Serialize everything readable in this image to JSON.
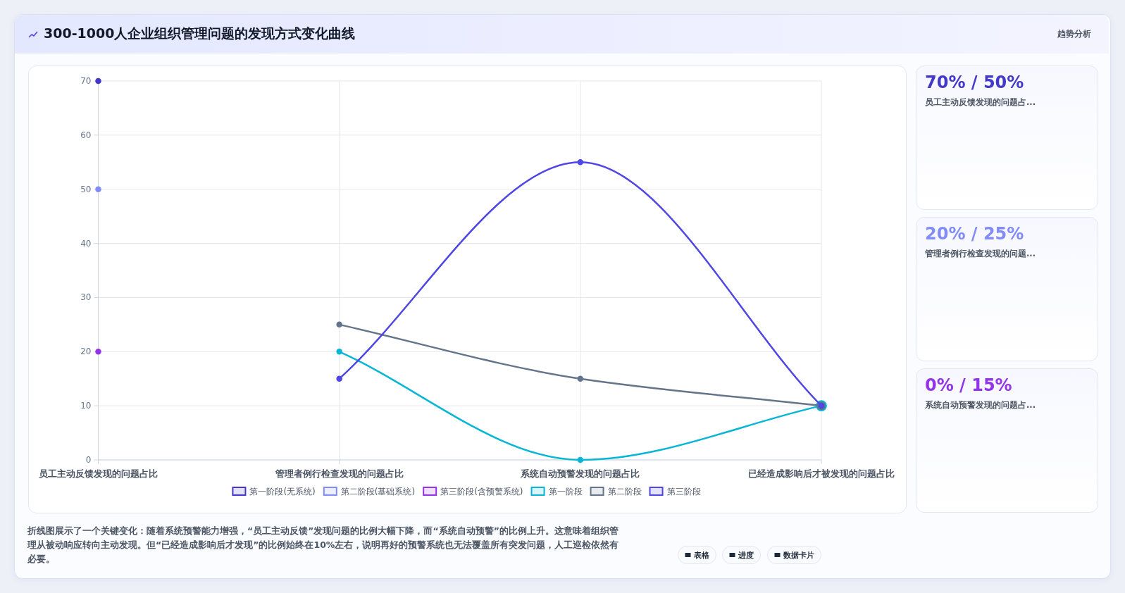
{
  "chart_data": {
    "type": "line",
    "title": "300-1000人企业组织管理问题的发现方式变化曲线",
    "categories": [
      "员工主动反馈发现的问题占比",
      "管理者例行检查发现的问题占比",
      "系统自动预警发现的问题占比",
      "已经造成影响后才被发现的问题占比"
    ],
    "series": [
      {
        "name": "第一阶段(无系统)",
        "color": "#4338ca",
        "values": [
          70,
          null,
          null,
          null
        ]
      },
      {
        "name": "第二阶段(基础系统)",
        "color": "#818cf8",
        "values": [
          50,
          null,
          null,
          null
        ]
      },
      {
        "name": "第三阶段(含预警系统)",
        "color": "#9333ea",
        "values": [
          20,
          null,
          null,
          null
        ]
      },
      {
        "name": "第一阶段",
        "color": "#06b6d4",
        "values": [
          null,
          20,
          0,
          10
        ]
      },
      {
        "name": "第二阶段",
        "color": "#64748b",
        "values": [
          null,
          25,
          15,
          10
        ]
      },
      {
        "name": "第三阶段",
        "color": "#4f46e5",
        "values": [
          null,
          15,
          55,
          10
        ]
      }
    ],
    "ylim": [
      0,
      70
    ],
    "yticks": [
      0,
      10,
      20,
      30,
      40,
      50,
      60,
      70
    ],
    "grid": true,
    "legend": "bottom",
    "marker": "circle",
    "annotations": [
      "趋势分析",
      "70% / 50%",
      "员工主动反馈发现的问题占...",
      "20% / 25%",
      "管理者例行检查发现的问题...",
      "0% / 15%",
      "系统自动预警发现的问题占...",
      "折线图展示了一个关键变化：随着系统预警能力增强，“员工主动反馈”发现问题的比例大幅下降，而“系统自动预警”的比例上升。这意味着组织管理从被动响应转向主动发现。但“已经造成影响后才发现”的比例始终在10%左右，说明再好的预警系统也无法覆盖所有突发问题，人工巡检依然有必要。",
      "表格",
      "进度",
      "数据卡片"
    ]
  }
}
